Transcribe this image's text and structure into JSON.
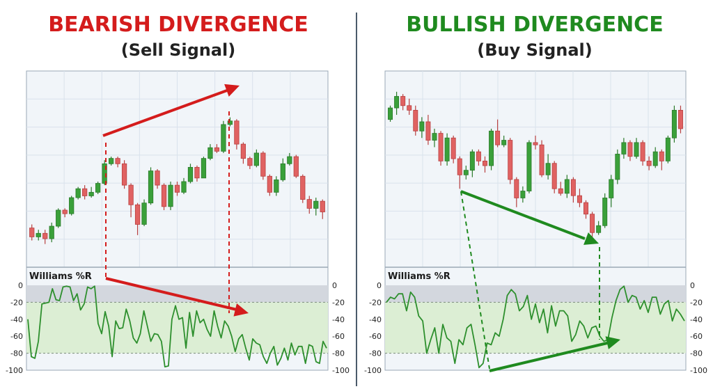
{
  "colors": {
    "bear": "#d41c1c",
    "bull": "#1f8a1f",
    "up": "#3aa03a",
    "down": "#e06262",
    "osc": "#2d8f2d",
    "panel_bg": "#f1f5f9",
    "grid": "#d9e2ec"
  },
  "left": {
    "title": "BEARISH DIVERGENCE",
    "subtitle": "(Sell Signal)",
    "indicator_label": "Williams %R",
    "y_ticks": [
      "0",
      "-20",
      "-40",
      "-60",
      "-80",
      "-100"
    ]
  },
  "right": {
    "title": "BULLISH DIVERGENCE",
    "subtitle": "(Buy Signal)",
    "indicator_label": "Williams %R",
    "y_ticks": [
      "0",
      "-20",
      "-40",
      "-60",
      "-80",
      "-100"
    ]
  },
  "chart_data": [
    {
      "type": "candlestick",
      "name_ref": "left-price",
      "candles": [
        [
          52,
          47,
          54,
          45
        ],
        [
          47,
          49,
          51,
          45
        ],
        [
          49,
          46,
          51,
          43
        ],
        [
          46,
          53,
          55,
          44
        ],
        [
          53,
          62,
          63,
          52
        ],
        [
          62,
          60,
          63,
          58
        ],
        [
          60,
          69,
          70,
          59
        ],
        [
          69,
          74,
          75,
          68
        ],
        [
          74,
          70,
          76,
          68
        ],
        [
          70,
          72,
          75,
          69
        ],
        [
          72,
          77,
          78,
          71
        ],
        [
          77,
          88,
          90,
          76
        ],
        [
          88,
          91,
          92,
          87
        ],
        [
          91,
          88,
          92,
          86
        ],
        [
          88,
          76,
          90,
          74
        ],
        [
          76,
          65,
          77,
          58
        ],
        [
          65,
          54,
          66,
          48
        ],
        [
          54,
          66,
          68,
          53
        ],
        [
          66,
          84,
          86,
          65
        ],
        [
          84,
          76,
          85,
          74
        ],
        [
          76,
          64,
          77,
          62
        ],
        [
          64,
          76,
          78,
          62
        ],
        [
          76,
          72,
          78,
          70
        ],
        [
          72,
          78,
          80,
          71
        ],
        [
          78,
          86,
          88,
          77
        ],
        [
          86,
          80,
          87,
          78
        ],
        [
          80,
          91,
          92,
          80
        ],
        [
          91,
          97,
          99,
          90
        ],
        [
          97,
          95,
          99,
          94
        ],
        [
          95,
          110,
          112,
          94
        ],
        [
          110,
          112,
          114,
          109
        ],
        [
          112,
          99,
          113,
          96
        ],
        [
          99,
          91,
          100,
          88
        ],
        [
          91,
          87,
          92,
          85
        ],
        [
          87,
          94,
          96,
          86
        ],
        [
          94,
          81,
          95,
          79
        ],
        [
          81,
          72,
          82,
          70
        ],
        [
          72,
          79,
          81,
          70
        ],
        [
          79,
          88,
          91,
          78
        ],
        [
          88,
          92,
          94,
          87
        ],
        [
          92,
          81,
          93,
          80
        ],
        [
          81,
          68,
          82,
          66
        ],
        [
          68,
          63,
          70,
          60
        ],
        [
          63,
          67,
          69,
          59
        ],
        [
          67,
          61,
          68,
          57
        ]
      ],
      "williams_r": [
        -40,
        -84,
        -86,
        -66,
        -22,
        -21,
        -20,
        -4,
        -17,
        -18,
        -2,
        -1,
        -2,
        -18,
        -10,
        -29,
        -22,
        -2,
        -4,
        -1,
        -45,
        -57,
        -31,
        -48,
        -84,
        -42,
        -51,
        -50,
        -28,
        -42,
        -62,
        -68,
        -57,
        -30,
        -48,
        -66,
        -57,
        -58,
        -66,
        -96,
        -95,
        -40,
        -24,
        -40,
        -38,
        -74,
        -32,
        -60,
        -30,
        -44,
        -40,
        -52,
        -60,
        -30,
        -48,
        -62,
        -42,
        -48,
        -60,
        -78,
        -63,
        -58,
        -74,
        -88,
        -63,
        -68,
        -70,
        -84,
        -92,
        -80,
        -72,
        -94,
        -86,
        -74,
        -88,
        -68,
        -82,
        -72,
        -72,
        -92,
        -70,
        -72,
        -90,
        -92,
        -66,
        -74
      ],
      "annotations": [
        "price higher high",
        "Williams %R lower high"
      ]
    },
    {
      "type": "candlestick",
      "name_ref": "right-price",
      "candles": [
        [
          104,
          109,
          110,
          103
        ],
        [
          109,
          114,
          116,
          106
        ],
        [
          114,
          110,
          115,
          108
        ],
        [
          110,
          108,
          113,
          106
        ],
        [
          108,
          99,
          110,
          97
        ],
        [
          99,
          103,
          105,
          96
        ],
        [
          103,
          95,
          106,
          93
        ],
        [
          95,
          98,
          100,
          92
        ],
        [
          98,
          86,
          99,
          84
        ],
        [
          86,
          96,
          98,
          84
        ],
        [
          96,
          87,
          97,
          85
        ],
        [
          87,
          80,
          88,
          74
        ],
        [
          80,
          82,
          84,
          78
        ],
        [
          82,
          90,
          91,
          79
        ],
        [
          90,
          86,
          91,
          84
        ],
        [
          86,
          84,
          88,
          81
        ],
        [
          84,
          99,
          100,
          82
        ],
        [
          99,
          93,
          104,
          92
        ],
        [
          93,
          95,
          97,
          92
        ],
        [
          95,
          78,
          96,
          76
        ],
        [
          78,
          70,
          79,
          66
        ],
        [
          70,
          73,
          75,
          68
        ],
        [
          73,
          94,
          95,
          72
        ],
        [
          94,
          93,
          97,
          91
        ],
        [
          93,
          80,
          95,
          79
        ],
        [
          80,
          85,
          89,
          78
        ],
        [
          85,
          74,
          86,
          72
        ],
        [
          74,
          72,
          77,
          71
        ],
        [
          72,
          78,
          80,
          70
        ],
        [
          78,
          71,
          79,
          68
        ],
        [
          71,
          68,
          74,
          66
        ],
        [
          68,
          63,
          69,
          61
        ],
        [
          63,
          55,
          64,
          52
        ],
        [
          55,
          58,
          60,
          54
        ],
        [
          58,
          70,
          72,
          57
        ],
        [
          70,
          78,
          80,
          66
        ],
        [
          78,
          89,
          91,
          76
        ],
        [
          89,
          94,
          96,
          87
        ],
        [
          94,
          88,
          95,
          86
        ],
        [
          88,
          94,
          96,
          87
        ],
        [
          94,
          86,
          95,
          84
        ],
        [
          86,
          84,
          88,
          82
        ],
        [
          84,
          90,
          92,
          83
        ],
        [
          90,
          86,
          91,
          82
        ],
        [
          86,
          96,
          97,
          85
        ],
        [
          96,
          108,
          110,
          94
        ],
        [
          108,
          100,
          110,
          98
        ]
      ],
      "williams_r": [
        -20,
        -14,
        -16,
        -10,
        -10,
        -30,
        -8,
        -14,
        -36,
        -42,
        -80,
        -64,
        -50,
        -80,
        -46,
        -62,
        -66,
        -92,
        -64,
        -70,
        -50,
        -46,
        -70,
        -97,
        -92,
        -68,
        -70,
        -56,
        -60,
        -40,
        -12,
        -5,
        -10,
        -30,
        -25,
        -12,
        -40,
        -22,
        -44,
        -28,
        -56,
        -24,
        -48,
        -30,
        -30,
        -36,
        -66,
        -58,
        -42,
        -48,
        -62,
        -50,
        -48,
        -60,
        -66,
        -64,
        -38,
        -18,
        -5,
        -1,
        -20,
        -12,
        -14,
        -28,
        -18,
        -32,
        -14,
        -14,
        -34,
        -22,
        -18,
        -42,
        -28,
        -34,
        -42
      ],
      "annotations": [
        "price lower low",
        "Williams %R higher low"
      ]
    }
  ]
}
